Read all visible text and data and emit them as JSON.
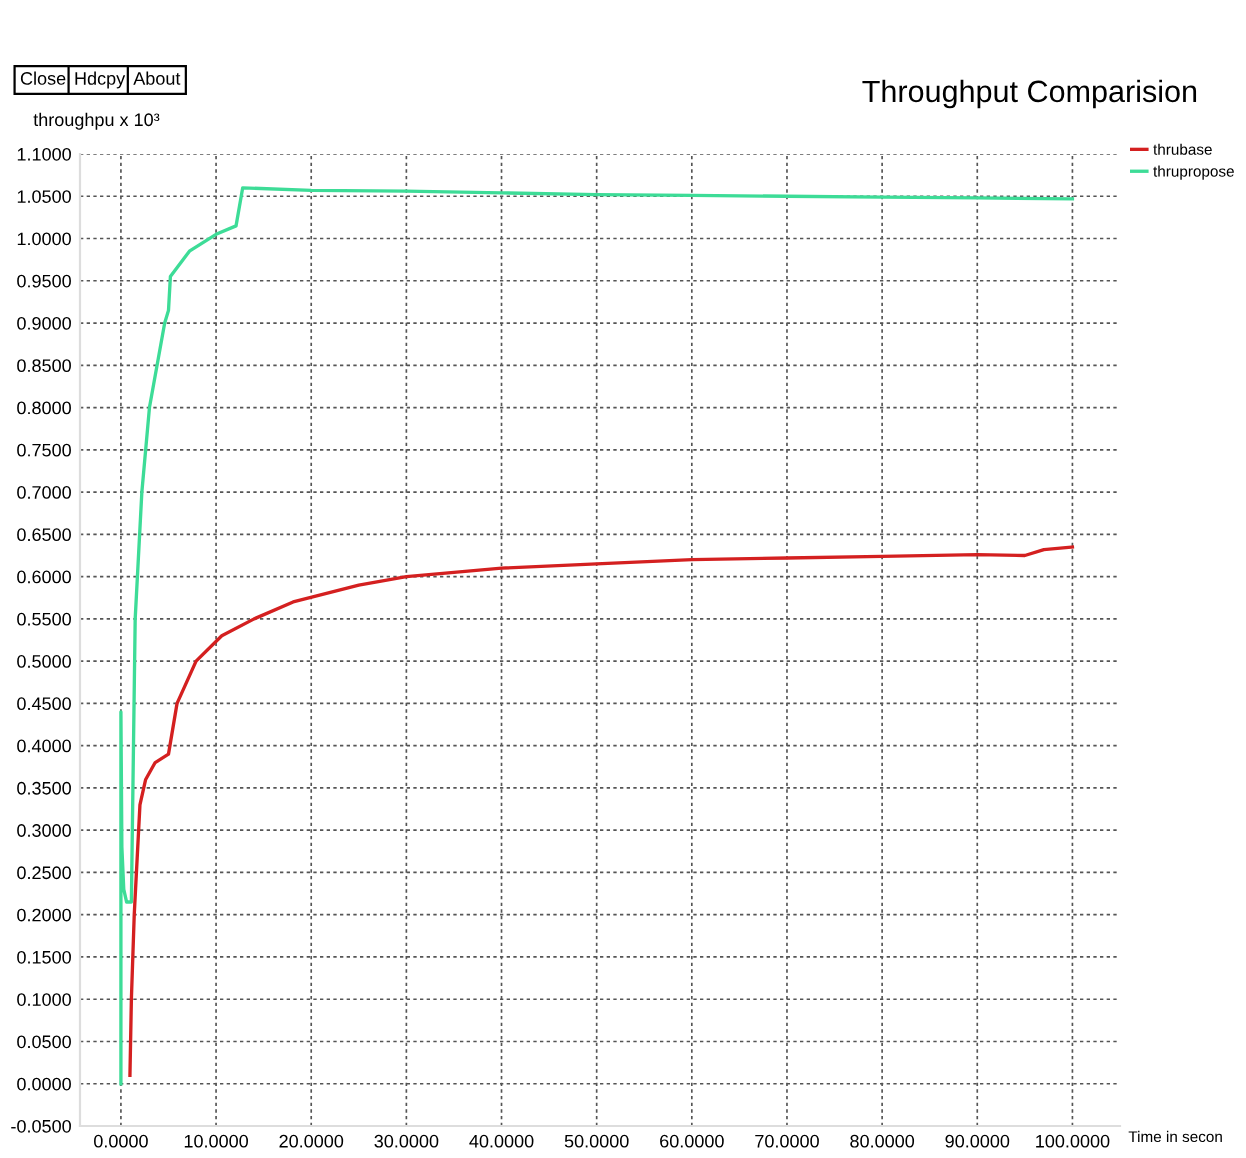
{
  "chart_data": {
    "type": "line",
    "title": "Throughput Comparision",
    "xlabel": "Time in secon",
    "ylabel": "throughpu x 10³",
    "annotations": [
      "Close",
      "Hdcpy",
      "About"
    ],
    "xlim": [
      -4.3,
      105
    ],
    "ylim": [
      -0.05,
      1.1
    ],
    "xticks": [
      {
        "value": 0,
        "label": "0.0000"
      },
      {
        "value": 10,
        "label": "10.0000"
      },
      {
        "value": 20,
        "label": "20.0000"
      },
      {
        "value": 30,
        "label": "30.0000"
      },
      {
        "value": 40,
        "label": "40.0000"
      },
      {
        "value": 50,
        "label": "50.0000"
      },
      {
        "value": 60,
        "label": "60.0000"
      },
      {
        "value": 70,
        "label": "70.0000"
      },
      {
        "value": 80,
        "label": "80.0000"
      },
      {
        "value": 90,
        "label": "90.0000"
      },
      {
        "value": 100,
        "label": "100.0000"
      }
    ],
    "yticks": [
      {
        "value": -0.05,
        "label": "-0.0500"
      },
      {
        "value": 0,
        "label": "0.0000"
      },
      {
        "value": 0.05,
        "label": "0.0500"
      },
      {
        "value": 0.1,
        "label": "0.1000"
      },
      {
        "value": 0.15,
        "label": "0.1500"
      },
      {
        "value": 0.2,
        "label": "0.2000"
      },
      {
        "value": 0.25,
        "label": "0.2500"
      },
      {
        "value": 0.3,
        "label": "0.3000"
      },
      {
        "value": 0.35,
        "label": "0.3500"
      },
      {
        "value": 0.4,
        "label": "0.4000"
      },
      {
        "value": 0.45,
        "label": "0.4500"
      },
      {
        "value": 0.5,
        "label": "0.5000"
      },
      {
        "value": 0.55,
        "label": "0.5500"
      },
      {
        "value": 0.6,
        "label": "0.6000"
      },
      {
        "value": 0.65,
        "label": "0.6500"
      },
      {
        "value": 0.7,
        "label": "0.7000"
      },
      {
        "value": 0.75,
        "label": "0.7500"
      },
      {
        "value": 0.8,
        "label": "0.8000"
      },
      {
        "value": 0.85,
        "label": "0.8500"
      },
      {
        "value": 0.9,
        "label": "0.9000"
      },
      {
        "value": 0.95,
        "label": "0.9500"
      },
      {
        "value": 1.0,
        "label": "1.0000"
      },
      {
        "value": 1.05,
        "label": "1.0500"
      },
      {
        "value": 1.1,
        "label": "1.1000"
      }
    ],
    "grid": true,
    "legend": "top right",
    "line_style": "solid",
    "series": [
      {
        "name": "thrubase",
        "color": "#d42020",
        "x": [
          0.95,
          1.1,
          1.4,
          2.0,
          2.6,
          3.6,
          5.0,
          5.9,
          7.9,
          10.6,
          14.0,
          18.1,
          25,
          30,
          40,
          50,
          60,
          70,
          80,
          90,
          95,
          97,
          100
        ],
        "values": [
          0.01,
          0.1,
          0.2,
          0.33,
          0.36,
          0.38,
          0.39,
          0.45,
          0.5,
          0.53,
          0.55,
          0.57,
          0.59,
          0.6,
          0.61,
          0.615,
          0.62,
          0.622,
          0.624,
          0.626,
          0.625,
          0.632,
          0.635
        ]
      },
      {
        "name": "thrupropose",
        "color": "#3ddc97",
        "x": [
          0,
          0,
          0.1,
          0.3,
          0.6,
          1.1,
          1.5,
          2.2,
          3.0,
          4.6,
          5.0,
          5.2,
          7.2,
          10,
          12.1,
          12.8,
          20,
          30,
          40,
          50,
          60,
          70,
          80,
          90,
          100
        ],
        "values": [
          0.0,
          0.44,
          0.28,
          0.23,
          0.215,
          0.215,
          0.55,
          0.7,
          0.8,
          0.9,
          0.915,
          0.955,
          0.985,
          1.005,
          1.015,
          1.06,
          1.057,
          1.056,
          1.054,
          1.052,
          1.051,
          1.05,
          1.049,
          1.048,
          1.047
        ]
      }
    ]
  }
}
